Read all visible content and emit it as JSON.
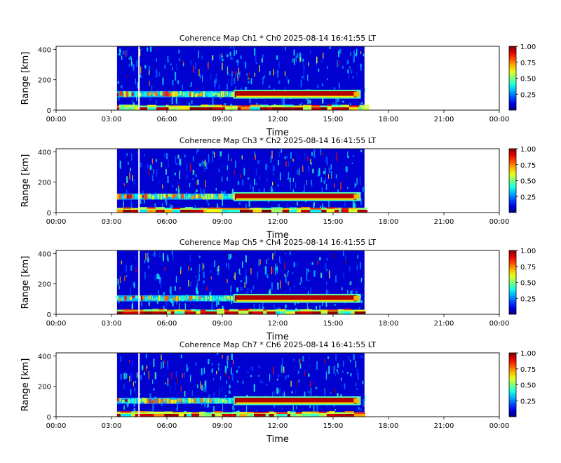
{
  "chart_data": [
    {
      "type": "heatmap",
      "title": "Coherence Map Ch1 * Ch0 2025-08-14 16:41:55 LT",
      "xlabel": "Time",
      "ylabel": "Range [km]",
      "xticks": [
        "00:00",
        "03:00",
        "06:00",
        "09:00",
        "12:00",
        "15:00",
        "18:00",
        "21:00",
        "00:00"
      ],
      "xlim_hours": [
        0,
        24
      ],
      "yticks": [
        0,
        200,
        400
      ],
      "ylim": [
        0,
        420
      ],
      "data_extent_hours": [
        3.3,
        16.7
      ],
      "colorbar": {
        "min": 0,
        "max": 1,
        "ticks": [
          "0.25",
          "0.50",
          "0.75",
          "1.00"
        ],
        "colormap": "jet"
      },
      "bands": [
        {
          "label": "high coherence layer",
          "t_start": 9.6,
          "t_end": 16.5,
          "r_min": 85,
          "r_max": 125,
          "value": 0.95
        },
        {
          "label": "intermittent layer",
          "t_start": 3.3,
          "t_end": 9.6,
          "r_min": 85,
          "r_max": 125,
          "value": 0.6
        },
        {
          "label": "ground clutter",
          "t_start": 3.3,
          "t_end": 16.7,
          "r_min": 0,
          "r_max": 30,
          "value": 0.8
        }
      ]
    },
    {
      "type": "heatmap",
      "title": "Coherence Map Ch3 * Ch2 2025-08-14 16:41:55 LT",
      "xlabel": "Time",
      "ylabel": "Range [km]",
      "xticks": [
        "00:00",
        "03:00",
        "06:00",
        "09:00",
        "12:00",
        "15:00",
        "18:00",
        "21:00",
        "00:00"
      ],
      "xlim_hours": [
        0,
        24
      ],
      "yticks": [
        0,
        200,
        400
      ],
      "ylim": [
        0,
        420
      ],
      "data_extent_hours": [
        3.3,
        16.7
      ],
      "colorbar": {
        "min": 0,
        "max": 1,
        "ticks": [
          "0.25",
          "0.50",
          "0.75",
          "1.00"
        ],
        "colormap": "jet"
      },
      "bands": [
        {
          "label": "high coherence layer",
          "t_start": 9.6,
          "t_end": 16.5,
          "r_min": 85,
          "r_max": 125,
          "value": 0.95
        },
        {
          "label": "intermittent layer",
          "t_start": 3.3,
          "t_end": 9.6,
          "r_min": 85,
          "r_max": 125,
          "value": 0.6
        },
        {
          "label": "ground clutter",
          "t_start": 3.3,
          "t_end": 16.7,
          "r_min": 0,
          "r_max": 30,
          "value": 0.8
        }
      ]
    },
    {
      "type": "heatmap",
      "title": "Coherence Map Ch5 * Ch4 2025-08-14 16:41:55 LT",
      "xlabel": "Time",
      "ylabel": "Range [km]",
      "xticks": [
        "00:00",
        "03:00",
        "06:00",
        "09:00",
        "12:00",
        "15:00",
        "18:00",
        "21:00",
        "00:00"
      ],
      "xlim_hours": [
        0,
        24
      ],
      "yticks": [
        0,
        200,
        400
      ],
      "ylim": [
        0,
        420
      ],
      "data_extent_hours": [
        3.3,
        16.7
      ],
      "colorbar": {
        "min": 0,
        "max": 1,
        "ticks": [
          "0.25",
          "0.50",
          "0.75",
          "1.00"
        ],
        "colormap": "jet"
      },
      "bands": [
        {
          "label": "high coherence layer",
          "t_start": 9.6,
          "t_end": 16.5,
          "r_min": 85,
          "r_max": 125,
          "value": 0.95
        },
        {
          "label": "intermittent layer",
          "t_start": 3.3,
          "t_end": 9.6,
          "r_min": 85,
          "r_max": 125,
          "value": 0.6
        },
        {
          "label": "ground clutter",
          "t_start": 3.3,
          "t_end": 16.7,
          "r_min": 0,
          "r_max": 30,
          "value": 0.8
        }
      ]
    },
    {
      "type": "heatmap",
      "title": "Coherence Map Ch7 * Ch6 2025-08-14 16:41:55 LT",
      "xlabel": "Time",
      "ylabel": "Range [km]",
      "xticks": [
        "00:00",
        "03:00",
        "06:00",
        "09:00",
        "12:00",
        "15:00",
        "18:00",
        "21:00",
        "00:00"
      ],
      "xlim_hours": [
        0,
        24
      ],
      "yticks": [
        0,
        200,
        400
      ],
      "ylim": [
        0,
        420
      ],
      "data_extent_hours": [
        3.3,
        16.7
      ],
      "colorbar": {
        "min": 0,
        "max": 1,
        "ticks": [
          "0.25",
          "0.50",
          "0.75",
          "1.00"
        ],
        "colormap": "jet"
      },
      "bands": [
        {
          "label": "high coherence layer",
          "t_start": 9.6,
          "t_end": 16.5,
          "r_min": 85,
          "r_max": 125,
          "value": 0.95
        },
        {
          "label": "intermittent layer",
          "t_start": 3.3,
          "t_end": 9.6,
          "r_min": 85,
          "r_max": 125,
          "value": 0.6
        },
        {
          "label": "ground clutter",
          "t_start": 3.3,
          "t_end": 16.7,
          "r_min": 0,
          "r_max": 30,
          "value": 0.8
        }
      ]
    }
  ]
}
